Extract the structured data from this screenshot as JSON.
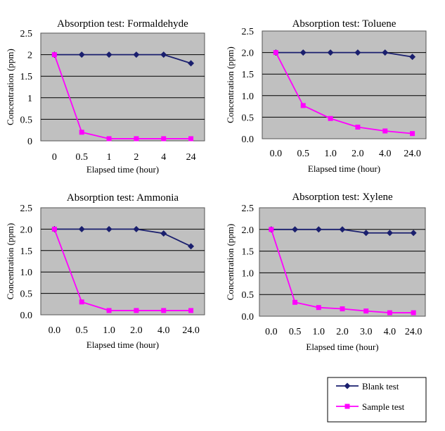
{
  "chart_data": [
    {
      "type": "line",
      "title": "Absorption test: Formaldehyde",
      "xlabel": "Elapsed time  (hour)",
      "ylabel": "Concentration (ppm)",
      "categories": [
        "0",
        "0.5",
        "1",
        "2",
        "4",
        "24"
      ],
      "y_ticks": [
        "0",
        "0.5",
        "1",
        "1.5",
        "2",
        "2.5"
      ],
      "ylim": [
        0,
        2.5
      ],
      "grid": true,
      "series": [
        {
          "name": "Blank test",
          "values": [
            2.0,
            2.0,
            2.0,
            2.0,
            2.0,
            1.8
          ]
        },
        {
          "name": "Sample test",
          "values": [
            2.0,
            0.2,
            0.05,
            0.05,
            0.05,
            0.05
          ]
        }
      ]
    },
    {
      "type": "line",
      "title": "Absorption test: Toluene",
      "xlabel": "Elapsed time  (hour)",
      "ylabel": "Concentration (ppm)",
      "categories": [
        "0.0",
        "0.5",
        "1.0",
        "2.0",
        "4.0",
        "24.0"
      ],
      "y_ticks": [
        "0.0",
        "0.5",
        "1.0",
        "1.5",
        "2.0",
        "2.5"
      ],
      "ylim": [
        0,
        2.5
      ],
      "grid": true,
      "series": [
        {
          "name": "Blank test",
          "values": [
            2.0,
            2.0,
            2.0,
            2.0,
            2.0,
            1.9
          ]
        },
        {
          "name": "Sample test",
          "values": [
            2.0,
            0.77,
            0.47,
            0.27,
            0.18,
            0.12
          ]
        }
      ]
    },
    {
      "type": "line",
      "title": "Absorption test: Ammonia",
      "xlabel": "Elapsed time  (hour)",
      "ylabel": "Concentration (ppm)",
      "categories": [
        "0.0",
        "0.5",
        "1.0",
        "2.0",
        "4.0",
        "24.0"
      ],
      "y_ticks": [
        "0.0",
        "0.5",
        "1.0",
        "1.5",
        "2.0",
        "2.5"
      ],
      "ylim": [
        0,
        2.5
      ],
      "grid": true,
      "series": [
        {
          "name": "Blank test",
          "values": [
            2.0,
            2.0,
            2.0,
            2.0,
            1.9,
            1.6
          ]
        },
        {
          "name": "Sample test",
          "values": [
            2.0,
            0.3,
            0.1,
            0.1,
            0.1,
            0.1
          ]
        }
      ]
    },
    {
      "type": "line",
      "title": "Absorption test: Xylene",
      "xlabel": "Elapsed time  (hour)",
      "ylabel": "Concentration (ppm)",
      "categories": [
        "0.0",
        "0.5",
        "1.0",
        "2.0",
        "3.0",
        "4.0",
        "24.0"
      ],
      "y_ticks": [
        "0.0",
        "0.5",
        "1.0",
        "1.5",
        "2.0",
        "2.5"
      ],
      "ylim": [
        0,
        2.5
      ],
      "grid": true,
      "series": [
        {
          "name": "Blank test",
          "values": [
            2.0,
            2.0,
            2.0,
            2.0,
            1.92,
            1.92,
            1.92
          ]
        },
        {
          "name": "Sample test",
          "values": [
            2.0,
            0.32,
            0.2,
            0.17,
            0.12,
            0.08,
            0.08
          ]
        }
      ]
    }
  ],
  "legend": {
    "items": [
      {
        "label": "Blank test",
        "color": "#1a1f6e",
        "marker": "diamond"
      },
      {
        "label": "Sample test",
        "color": "#ff00ff",
        "marker": "square"
      }
    ]
  },
  "colors": {
    "plot_background": "#c0c0c0",
    "blank": "#1a1f6e",
    "sample": "#ff00ff"
  }
}
